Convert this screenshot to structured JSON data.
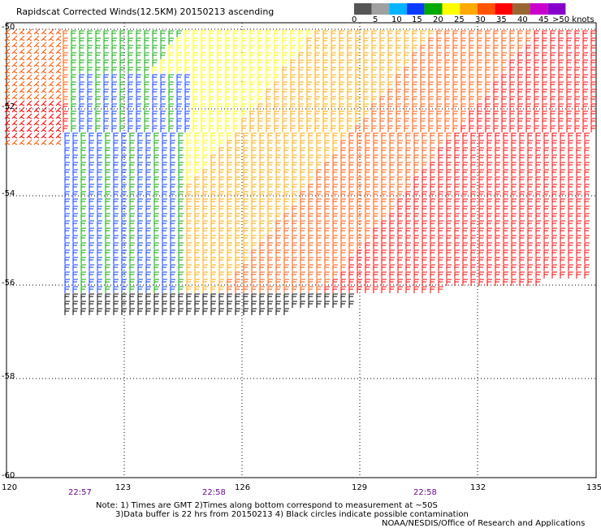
{
  "title": "Rapidscat Corrected Winds(12.5KM) 20150213 ascending",
  "legend": {
    "colors": [
      "#555555",
      "#a0a0a0",
      "#00b4ff",
      "#0a3cff",
      "#00aa00",
      "#ffff00",
      "#ffaa00",
      "#ff5500",
      "#ff0000",
      "#996633",
      "#cc00cc",
      "#8800cc"
    ],
    "labels": [
      "0",
      "5",
      "10",
      "15",
      "20",
      "25",
      "30",
      "35",
      "40",
      "45",
      ">50 knots"
    ]
  },
  "axes": {
    "lat_labels": [
      "-50",
      "-52",
      "-54",
      "-56",
      "-58",
      "-60"
    ],
    "lon_labels": [
      "120",
      "123",
      "126",
      "129",
      "132",
      "135"
    ]
  },
  "times": [
    "22:57",
    "22:58",
    "22:58"
  ],
  "notes": {
    "line1": "Note: 1) Times are GMT  2)Times along bottom correspond to measurement at ~50S",
    "line2": "3)Data buffer is 22 hrs from 20150213  4) Black circles indicate possible contamination",
    "credit": "NOAA/NESDIS/Office of Research and Applications"
  }
}
